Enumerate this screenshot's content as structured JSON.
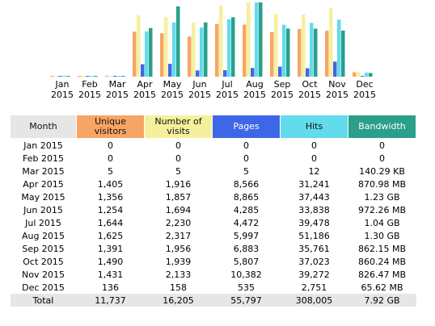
{
  "colors": {
    "unique": "#f7a565",
    "visits": "#f5f09c",
    "pages": "#3e67e8",
    "hits": "#62dbec",
    "bandwidth": "#2b9f8a",
    "month_header": "#e6e6e6",
    "total_row": "#e6e6e6"
  },
  "chart_data": {
    "type": "bar",
    "categories": [
      "Jan 2015",
      "Feb 2015",
      "Mar 2015",
      "Apr 2015",
      "May 2015",
      "Jun 2015",
      "Jul 2015",
      "Aug 2015",
      "Sep 2015",
      "Oct 2015",
      "Nov 2015",
      "Dec 2015"
    ],
    "series": [
      {
        "name": "Unique visitors",
        "values": [
          0,
          0,
          5,
          1405,
          1356,
          1254,
          1644,
          1625,
          1391,
          1490,
          1431,
          136
        ]
      },
      {
        "name": "Number of visits",
        "values": [
          0,
          0,
          5,
          1916,
          1857,
          1694,
          2230,
          2317,
          1956,
          1939,
          2133,
          158
        ]
      },
      {
        "name": "Pages",
        "values": [
          0,
          0,
          5,
          8566,
          8865,
          4285,
          4472,
          5997,
          6883,
          5807,
          10382,
          535
        ]
      },
      {
        "name": "Hits",
        "values": [
          0,
          0,
          12,
          31241,
          37443,
          33838,
          39478,
          51186,
          35761,
          37023,
          39272,
          2751
        ]
      },
      {
        "name": "Bandwidth",
        "values": [
          0,
          0,
          0.137,
          870.98,
          1259.52,
          972.26,
          1064.96,
          1331.2,
          862.15,
          860.24,
          826.47,
          65.62
        ]
      }
    ],
    "title": "",
    "xlabel": "",
    "ylabel": "",
    "grid": false,
    "legend": "none"
  },
  "months": [
    {
      "m": "Jan",
      "y": "2015"
    },
    {
      "m": "Feb",
      "y": "2015"
    },
    {
      "m": "Mar",
      "y": "2015"
    },
    {
      "m": "Apr",
      "y": "2015"
    },
    {
      "m": "May",
      "y": "2015"
    },
    {
      "m": "Jun",
      "y": "2015"
    },
    {
      "m": "Jul",
      "y": "2015"
    },
    {
      "m": "Aug",
      "y": "2015"
    },
    {
      "m": "Sep",
      "y": "2015"
    },
    {
      "m": "Oct",
      "y": "2015"
    },
    {
      "m": "Nov",
      "y": "2015"
    },
    {
      "m": "Dec",
      "y": "2015"
    }
  ],
  "table": {
    "headers": {
      "month": "Month",
      "unique": "Unique visitors",
      "visits": "Number of visits",
      "pages": "Pages",
      "hits": "Hits",
      "bandwidth": "Bandwidth"
    },
    "rows": [
      {
        "month": "Jan 2015",
        "unique": "0",
        "visits": "0",
        "pages": "0",
        "hits": "0",
        "bandwidth": "0"
      },
      {
        "month": "Feb 2015",
        "unique": "0",
        "visits": "0",
        "pages": "0",
        "hits": "0",
        "bandwidth": "0"
      },
      {
        "month": "Mar 2015",
        "unique": "5",
        "visits": "5",
        "pages": "5",
        "hits": "12",
        "bandwidth": "140.29 KB"
      },
      {
        "month": "Apr 2015",
        "unique": "1,405",
        "visits": "1,916",
        "pages": "8,566",
        "hits": "31,241",
        "bandwidth": "870.98 MB"
      },
      {
        "month": "May 2015",
        "unique": "1,356",
        "visits": "1,857",
        "pages": "8,865",
        "hits": "37,443",
        "bandwidth": "1.23 GB"
      },
      {
        "month": "Jun 2015",
        "unique": "1,254",
        "visits": "1,694",
        "pages": "4,285",
        "hits": "33,838",
        "bandwidth": "972.26 MB"
      },
      {
        "month": "Jul 2015",
        "unique": "1,644",
        "visits": "2,230",
        "pages": "4,472",
        "hits": "39,478",
        "bandwidth": "1.04 GB"
      },
      {
        "month": "Aug 2015",
        "unique": "1,625",
        "visits": "2,317",
        "pages": "5,997",
        "hits": "51,186",
        "bandwidth": "1.30 GB"
      },
      {
        "month": "Sep 2015",
        "unique": "1,391",
        "visits": "1,956",
        "pages": "6,883",
        "hits": "35,761",
        "bandwidth": "862.15 MB"
      },
      {
        "month": "Oct 2015",
        "unique": "1,490",
        "visits": "1,939",
        "pages": "5,807",
        "hits": "37,023",
        "bandwidth": "860.24 MB"
      },
      {
        "month": "Nov 2015",
        "unique": "1,431",
        "visits": "2,133",
        "pages": "10,382",
        "hits": "39,272",
        "bandwidth": "826.47 MB"
      },
      {
        "month": "Dec 2015",
        "unique": "136",
        "visits": "158",
        "pages": "535",
        "hits": "2,751",
        "bandwidth": "65.62 MB"
      }
    ],
    "total": {
      "label": "Total",
      "unique": "11,737",
      "visits": "16,205",
      "pages": "55,797",
      "hits": "308,005",
      "bandwidth": "7.92 GB"
    }
  }
}
